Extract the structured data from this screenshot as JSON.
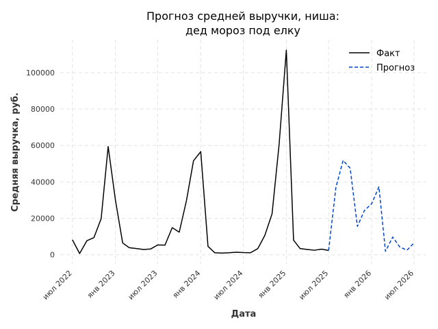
{
  "chart_data": {
    "type": "line",
    "title": [
      "Прогноз средней выручки, ниша:",
      "дед мороз под елку"
    ],
    "xlabel": "Дата",
    "ylabel": "Средняя выручка, руб.",
    "x_ticks": [
      {
        "date": "2022-07-01",
        "label": "июл 2022"
      },
      {
        "date": "2023-01-01",
        "label": "янв 2023"
      },
      {
        "date": "2023-07-01",
        "label": "июл 2023"
      },
      {
        "date": "2024-01-01",
        "label": "янв 2024"
      },
      {
        "date": "2024-07-01",
        "label": "июл 2024"
      },
      {
        "date": "2025-01-01",
        "label": "янв 2025"
      },
      {
        "date": "2025-07-01",
        "label": "июл 2025"
      },
      {
        "date": "2026-01-01",
        "label": "янв 2026"
      },
      {
        "date": "2026-07-01",
        "label": "июл 2026"
      }
    ],
    "y_ticks": [
      0,
      20000,
      40000,
      60000,
      80000,
      100000
    ],
    "xlim": [
      "2022-05-10",
      "2026-08-20"
    ],
    "ylim": [
      -5000,
      118000
    ],
    "grid": true,
    "legend_position": "top-right",
    "series": [
      {
        "name": "Факт",
        "color": "#000000",
        "style": "solid",
        "points": [
          [
            "2022-07-01",
            8200
          ],
          [
            "2022-08-01",
            700
          ],
          [
            "2022-09-01",
            7700
          ],
          [
            "2022-10-01",
            9400
          ],
          [
            "2022-11-01",
            19800
          ],
          [
            "2022-12-01",
            59400
          ],
          [
            "2023-01-01",
            30100
          ],
          [
            "2023-02-01",
            6500
          ],
          [
            "2023-03-01",
            3900
          ],
          [
            "2023-04-01",
            3400
          ],
          [
            "2023-05-01",
            2900
          ],
          [
            "2023-06-01",
            3200
          ],
          [
            "2023-07-01",
            5400
          ],
          [
            "2023-08-01",
            5300
          ],
          [
            "2023-09-01",
            14900
          ],
          [
            "2023-10-01",
            12400
          ],
          [
            "2023-11-01",
            29800
          ],
          [
            "2023-12-01",
            51600
          ],
          [
            "2024-01-01",
            56600
          ],
          [
            "2024-02-01",
            4600
          ],
          [
            "2024-03-01",
            1100
          ],
          [
            "2024-04-01",
            900
          ],
          [
            "2024-05-01",
            1100
          ],
          [
            "2024-06-01",
            1400
          ],
          [
            "2024-07-01",
            1200
          ],
          [
            "2024-08-01",
            1100
          ],
          [
            "2024-09-01",
            3400
          ],
          [
            "2024-10-01",
            10600
          ],
          [
            "2024-11-01",
            22500
          ],
          [
            "2024-12-01",
            60400
          ],
          [
            "2025-01-01",
            112300
          ],
          [
            "2025-02-01",
            8000
          ],
          [
            "2025-03-01",
            3400
          ],
          [
            "2025-04-01",
            2900
          ],
          [
            "2025-05-01",
            2500
          ],
          [
            "2025-06-01",
            3100
          ],
          [
            "2025-07-01",
            2400
          ]
        ]
      },
      {
        "name": "Прогноз",
        "color": "#0044cc",
        "style": "dashed",
        "points": [
          [
            "2025-07-01",
            2400
          ],
          [
            "2025-08-01",
            37000
          ],
          [
            "2025-09-01",
            51800
          ],
          [
            "2025-10-01",
            47500
          ],
          [
            "2025-11-01",
            15600
          ],
          [
            "2025-12-01",
            24300
          ],
          [
            "2026-01-01",
            28000
          ],
          [
            "2026-02-01",
            37300
          ],
          [
            "2026-03-01",
            1900
          ],
          [
            "2026-04-01",
            9700
          ],
          [
            "2026-05-01",
            4300
          ],
          [
            "2026-06-01",
            2500
          ],
          [
            "2026-07-01",
            6500
          ]
        ]
      }
    ]
  }
}
